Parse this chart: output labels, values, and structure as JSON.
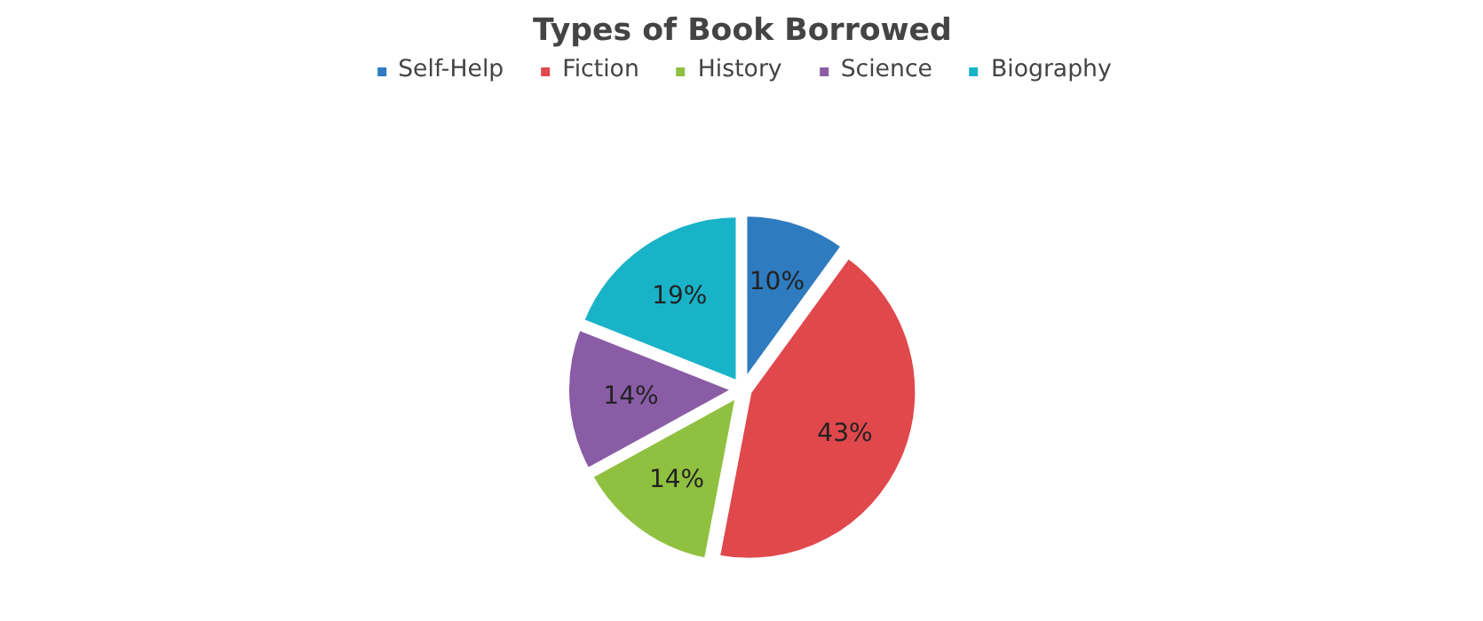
{
  "chart_data": {
    "type": "pie",
    "title": "Types of Book Borrowed",
    "categories": [
      "Self-Help",
      "Fiction",
      "History",
      "Science",
      "Biography"
    ],
    "values": [
      10,
      43,
      14,
      14,
      19
    ],
    "colors": [
      "#2e7bbf",
      "#e0484c",
      "#90c040",
      "#8a5ca6",
      "#19b3c8"
    ],
    "value_labels": [
      "10%",
      "43%",
      "14%",
      "14%",
      "19%"
    ],
    "legend": "top"
  }
}
